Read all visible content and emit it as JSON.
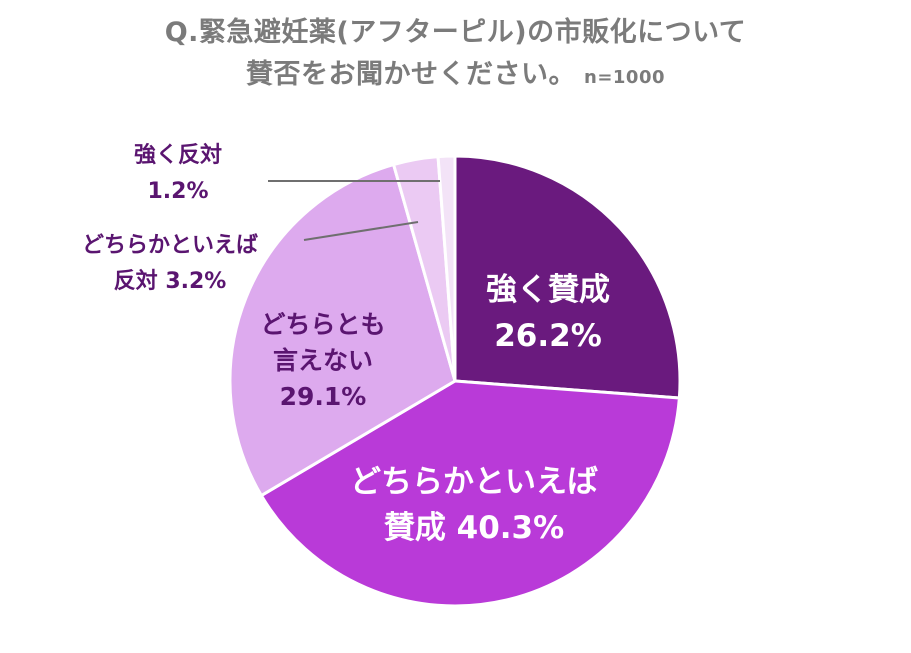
{
  "chart_data": {
    "type": "pie",
    "title_line1": "Q.緊急避妊薬(アフターピル)の市販化について",
    "title_line2": "賛否をお聞かせください。",
    "sample_size": "n=1000",
    "slices": [
      {
        "name_lines": [
          "強く賛成"
        ],
        "value_text": "26.2%",
        "value": 26.2,
        "color": "#6a1a7e",
        "label_color": "#ffffff"
      },
      {
        "name_lines": [
          "どちらかといえば"
        ],
        "value_text": "賛成 40.3%",
        "value": 40.3,
        "color": "#b93ad8",
        "label_color": "#ffffff"
      },
      {
        "name_lines": [
          "どちらとも",
          "言えない"
        ],
        "value_text": "29.1%",
        "value": 29.1,
        "color": "#ddaaee",
        "label_color": "#5a1570"
      },
      {
        "name_lines": [
          "どちらかといえば"
        ],
        "value_text": "反対 3.2%",
        "value": 3.2,
        "color": "#ebcaf3",
        "label_color": "#5a1570"
      },
      {
        "name_lines": [
          "強く反対"
        ],
        "value_text": "1.2%",
        "value": 1.2,
        "color": "#f3e3f7",
        "label_color": "#5a1570"
      }
    ]
  }
}
